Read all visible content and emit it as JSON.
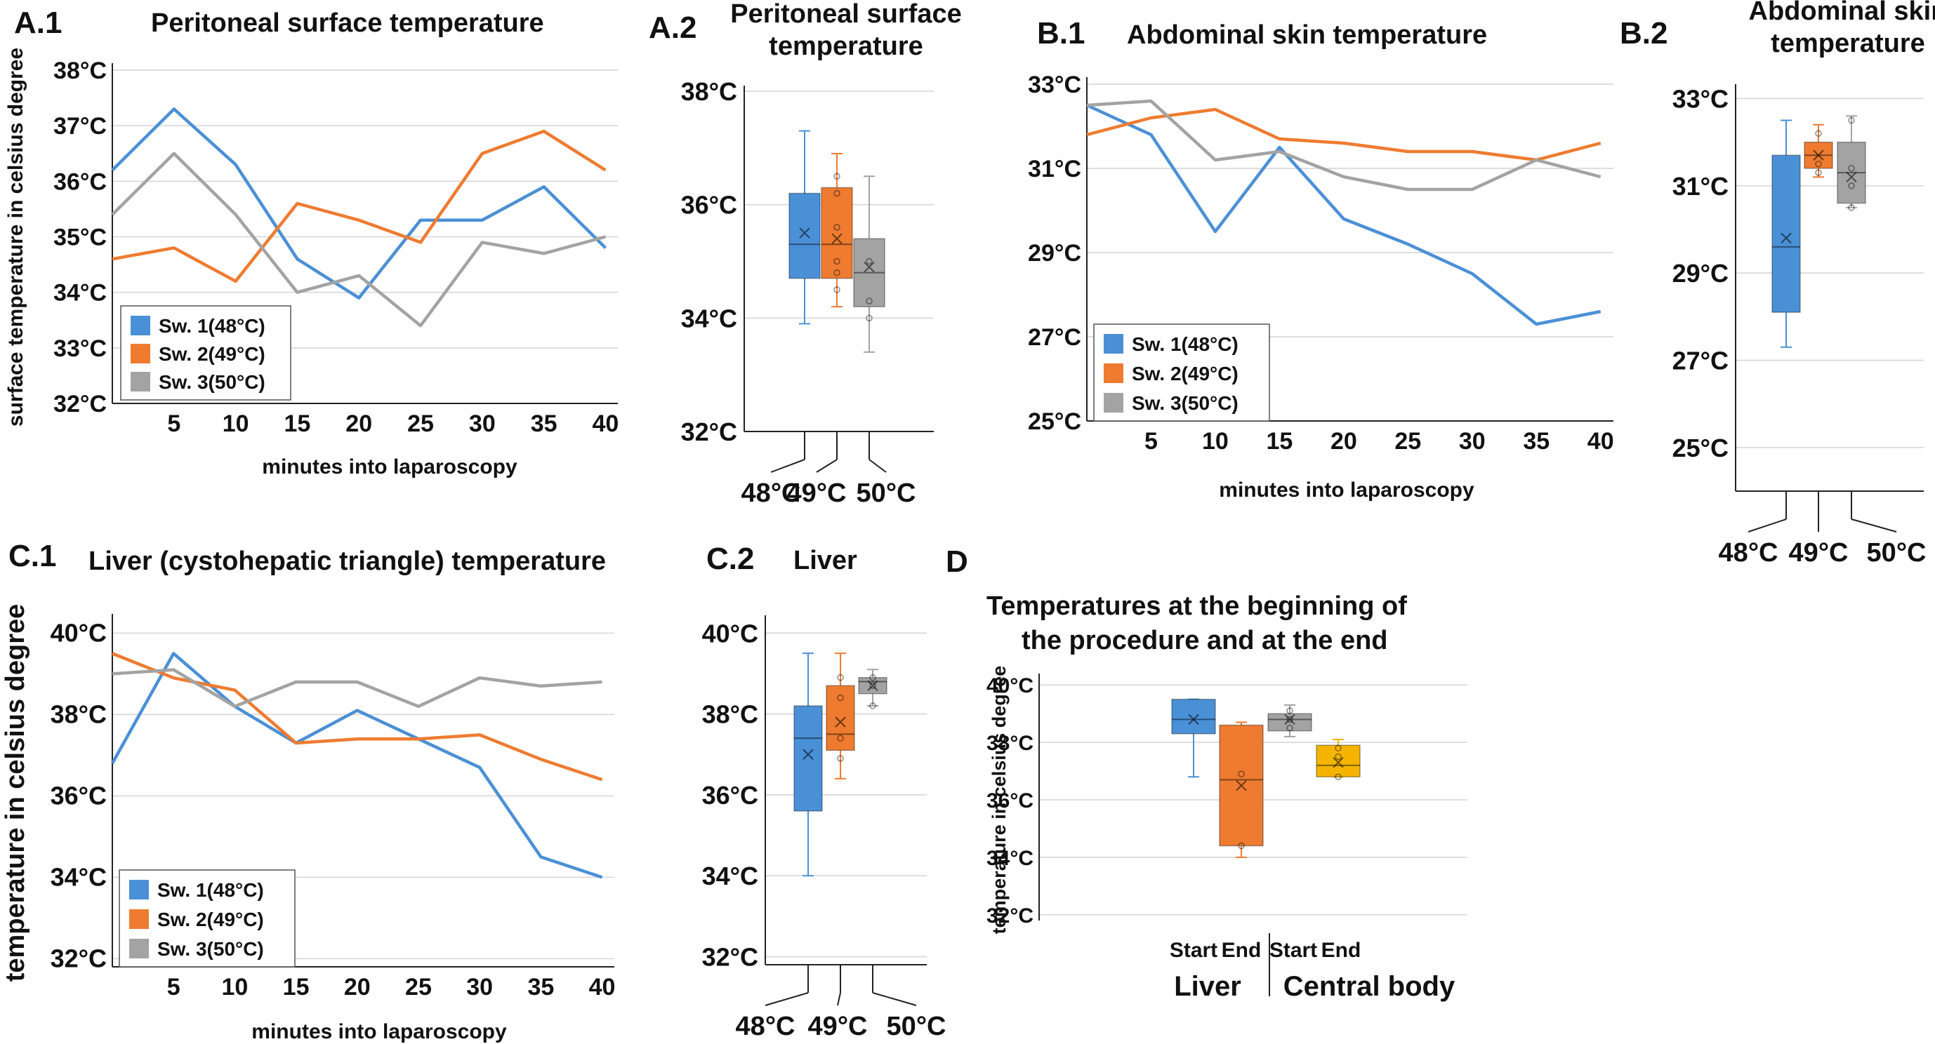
{
  "chart_data": [
    {
      "id": "A1",
      "panel": "A.1",
      "type": "line",
      "title": "Peritoneal surface temperature",
      "xlabel": "minutes into laparoscopy",
      "ylabel": "surface temperature in celsius degree",
      "x": [
        0,
        5,
        10,
        15,
        20,
        25,
        30,
        35,
        40
      ],
      "xticks": [
        "5",
        "10",
        "15",
        "20",
        "25",
        "30",
        "35",
        "40"
      ],
      "xtick_values": [
        5,
        10,
        15,
        20,
        25,
        30,
        35,
        40
      ],
      "xlim": [
        0,
        41
      ],
      "yticks": [
        "32°C",
        "33°C",
        "34°C",
        "35°C",
        "36°C",
        "37°C",
        "38°C"
      ],
      "ytick_values": [
        32,
        33,
        34,
        35,
        36,
        37,
        38
      ],
      "ylim": [
        32,
        38
      ],
      "legend": "bottom-left",
      "series": [
        {
          "name": "Sw. 1(48°C)",
          "color": "#4a90d6",
          "values": [
            36.2,
            37.3,
            36.3,
            34.6,
            33.9,
            35.3,
            35.3,
            35.9,
            34.8
          ]
        },
        {
          "name": "Sw. 2(49°C)",
          "color": "#ee7b30",
          "values": [
            34.6,
            34.8,
            34.2,
            35.6,
            35.3,
            34.9,
            36.5,
            36.9,
            36.2
          ]
        },
        {
          "name": "Sw. 3(50°C)",
          "color": "#a3a3a3",
          "values": [
            35.4,
            36.5,
            35.4,
            34.0,
            34.3,
            33.4,
            34.9,
            34.7,
            35.0
          ]
        }
      ]
    },
    {
      "id": "A2",
      "panel": "A.2",
      "type": "box",
      "title": [
        "Peritoneal surface",
        "temperature"
      ],
      "yticks": [
        "32°C",
        "34°C",
        "36°C",
        "38°C"
      ],
      "ytick_values": [
        32,
        34,
        36,
        38
      ],
      "ylim": [
        32,
        38
      ],
      "boxes": [
        {
          "label": "48°C",
          "color": "#4a90d6",
          "min": 33.9,
          "q1": 34.7,
          "median": 35.3,
          "q3": 36.2,
          "max": 37.3,
          "mean": 35.5,
          "points": []
        },
        {
          "label": "49°C",
          "color": "#ee7b30",
          "min": 34.2,
          "q1": 34.7,
          "median": 35.3,
          "q3": 36.3,
          "max": 36.9,
          "mean": 35.4,
          "points": [
            34.5,
            34.8,
            35.0,
            35.6,
            36.2,
            36.5
          ]
        },
        {
          "label": "50°C",
          "color": "#a3a3a3",
          "min": 33.4,
          "q1": 34.2,
          "median": 34.8,
          "q3": 35.4,
          "max": 36.5,
          "mean": 34.9,
          "points": [
            34.0,
            34.3,
            35.0
          ]
        }
      ]
    },
    {
      "id": "B1",
      "panel": "B.1",
      "type": "line",
      "title": "Abdominal skin temperature",
      "xlabel": "minutes into laparoscopy",
      "ylabel": "",
      "x": [
        0,
        5,
        10,
        15,
        20,
        25,
        30,
        35,
        40
      ],
      "xticks": [
        "5",
        "10",
        "15",
        "20",
        "25",
        "30",
        "35",
        "40"
      ],
      "xtick_values": [
        5,
        10,
        15,
        20,
        25,
        30,
        35,
        40
      ],
      "xlim": [
        0,
        41
      ],
      "yticks": [
        "25°C",
        "27°C",
        "29°C",
        "31°C",
        "33°C"
      ],
      "ytick_values": [
        25,
        27,
        29,
        31,
        33
      ],
      "ylim": [
        25,
        33
      ],
      "legend": "bottom-left",
      "series": [
        {
          "name": "Sw. 1(48°C)",
          "color": "#4a90d6",
          "values": [
            32.5,
            31.8,
            29.5,
            31.5,
            29.8,
            29.2,
            28.5,
            27.3,
            27.6
          ]
        },
        {
          "name": "Sw. 2(49°C)",
          "color": "#ee7b30",
          "values": [
            31.8,
            32.2,
            32.4,
            31.7,
            31.6,
            31.4,
            31.4,
            31.2,
            31.6
          ]
        },
        {
          "name": "Sw. 3(50°C)",
          "color": "#a3a3a3",
          "values": [
            32.5,
            32.6,
            31.2,
            31.4,
            30.8,
            30.5,
            30.5,
            31.2,
            30.8
          ]
        }
      ]
    },
    {
      "id": "B2",
      "panel": "B.2",
      "type": "box",
      "title": [
        "Abdominal skin",
        "temperature"
      ],
      "yticks": [
        "25°C",
        "27°C",
        "29°C",
        "31°C",
        "33°C"
      ],
      "ytick_values": [
        25,
        27,
        29,
        31,
        33
      ],
      "ylim": [
        24,
        33.2
      ],
      "boxes": [
        {
          "label": "48°C",
          "color": "#4a90d6",
          "min": 27.3,
          "q1": 28.1,
          "median": 29.6,
          "q3": 31.7,
          "max": 32.5,
          "mean": 29.8,
          "points": []
        },
        {
          "label": "49°C",
          "color": "#ee7b30",
          "min": 31.2,
          "q1": 31.4,
          "median": 31.7,
          "q3": 32.0,
          "max": 32.4,
          "mean": 31.7,
          "points": [
            31.3,
            31.5,
            32.2
          ]
        },
        {
          "label": "50°C",
          "color": "#a3a3a3",
          "min": 30.5,
          "q1": 30.6,
          "median": 31.3,
          "q3": 32.0,
          "max": 32.6,
          "mean": 31.2,
          "points": [
            30.5,
            31.0,
            31.4,
            32.5
          ]
        }
      ]
    },
    {
      "id": "C1",
      "panel": "C.1",
      "type": "line",
      "title": "Liver (cystohepatic triangle) temperature",
      "xlabel": "minutes into laparoscopy",
      "ylabel": "temperature in celsius degree",
      "x": [
        0,
        5,
        10,
        15,
        20,
        25,
        30,
        35,
        40
      ],
      "xticks": [
        "5",
        "10",
        "15",
        "20",
        "25",
        "30",
        "35",
        "40"
      ],
      "xtick_values": [
        5,
        10,
        15,
        20,
        25,
        30,
        35,
        40
      ],
      "xlim": [
        0,
        41
      ],
      "yticks": [
        "32°C",
        "34°C",
        "36°C",
        "38°C",
        "40°C"
      ],
      "ytick_values": [
        32,
        34,
        36,
        38,
        40
      ],
      "ylim": [
        31.8,
        40.3
      ],
      "legend": "bottom-left",
      "series": [
        {
          "name": "Sw. 1(48°C)",
          "color": "#4a90d6",
          "values": [
            36.8,
            39.5,
            38.2,
            37.3,
            38.1,
            37.4,
            36.7,
            34.5,
            34.0
          ]
        },
        {
          "name": "Sw. 2(49°C)",
          "color": "#ee7b30",
          "values": [
            39.5,
            38.9,
            38.6,
            37.3,
            37.4,
            37.4,
            37.5,
            36.9,
            36.4
          ]
        },
        {
          "name": "Sw. 3(50°C)",
          "color": "#a3a3a3",
          "values": [
            39.0,
            39.1,
            38.2,
            38.8,
            38.8,
            38.2,
            38.9,
            38.7,
            38.8
          ]
        }
      ]
    },
    {
      "id": "C2",
      "panel": "C.2",
      "type": "box",
      "title": [
        "Liver"
      ],
      "yticks": [
        "32°C",
        "34°C",
        "36°C",
        "38°C",
        "40°C"
      ],
      "ytick_values": [
        32,
        34,
        36,
        38,
        40
      ],
      "ylim": [
        31.8,
        40.3
      ],
      "boxes": [
        {
          "label": "48°C",
          "color": "#4a90d6",
          "min": 34.0,
          "q1": 35.6,
          "median": 37.4,
          "q3": 38.2,
          "max": 39.5,
          "mean": 37.0,
          "points": []
        },
        {
          "label": "49°C",
          "color": "#ee7b30",
          "min": 36.4,
          "q1": 37.1,
          "median": 37.5,
          "q3": 38.7,
          "max": 39.5,
          "mean": 37.8,
          "points": [
            36.9,
            37.4,
            38.4,
            38.9
          ]
        },
        {
          "label": "50°C",
          "color": "#a3a3a3",
          "min": 38.2,
          "q1": 38.5,
          "median": 38.8,
          "q3": 38.9,
          "max": 39.1,
          "mean": 38.7,
          "points": [
            38.2,
            38.7,
            38.9
          ]
        }
      ]
    },
    {
      "id": "D",
      "panel": "D",
      "type": "box",
      "title": [
        "Temperatures at the beginning of",
        "the procedure and at the end"
      ],
      "ylabel": "temperature in celsius degree",
      "yticks": [
        "32°C",
        "34°C",
        "36°C",
        "38°C",
        "40°C"
      ],
      "ytick_values": [
        32,
        34,
        36,
        38,
        40
      ],
      "ylim": [
        31.8,
        40.2
      ],
      "groups": [
        "Liver",
        "Central body"
      ],
      "boxes": [
        {
          "label": "Start",
          "group": "Liver",
          "color": "#4a90d6",
          "min": 36.8,
          "q1": 38.3,
          "median": 38.8,
          "q3": 39.5,
          "max": 39.5,
          "mean": 38.8,
          "points": []
        },
        {
          "label": "End",
          "group": "Liver",
          "color": "#ee7b30",
          "min": 34.0,
          "q1": 34.4,
          "median": 36.7,
          "q3": 38.6,
          "max": 38.7,
          "mean": 36.5,
          "points": [
            34.4,
            36.9
          ]
        },
        {
          "label": "Start",
          "group": "Central body",
          "color": "#a3a3a3",
          "min": 38.2,
          "q1": 38.4,
          "median": 38.8,
          "q3": 39.0,
          "max": 39.3,
          "mean": 38.8,
          "points": [
            38.5,
            38.8,
            39.1
          ]
        },
        {
          "label": "End",
          "group": "Central body",
          "color": "#f4b400",
          "min": 36.8,
          "q1": 36.8,
          "median": 37.2,
          "q3": 37.9,
          "max": 38.1,
          "mean": 37.3,
          "points": [
            36.8,
            37.5,
            37.8
          ]
        }
      ]
    }
  ]
}
